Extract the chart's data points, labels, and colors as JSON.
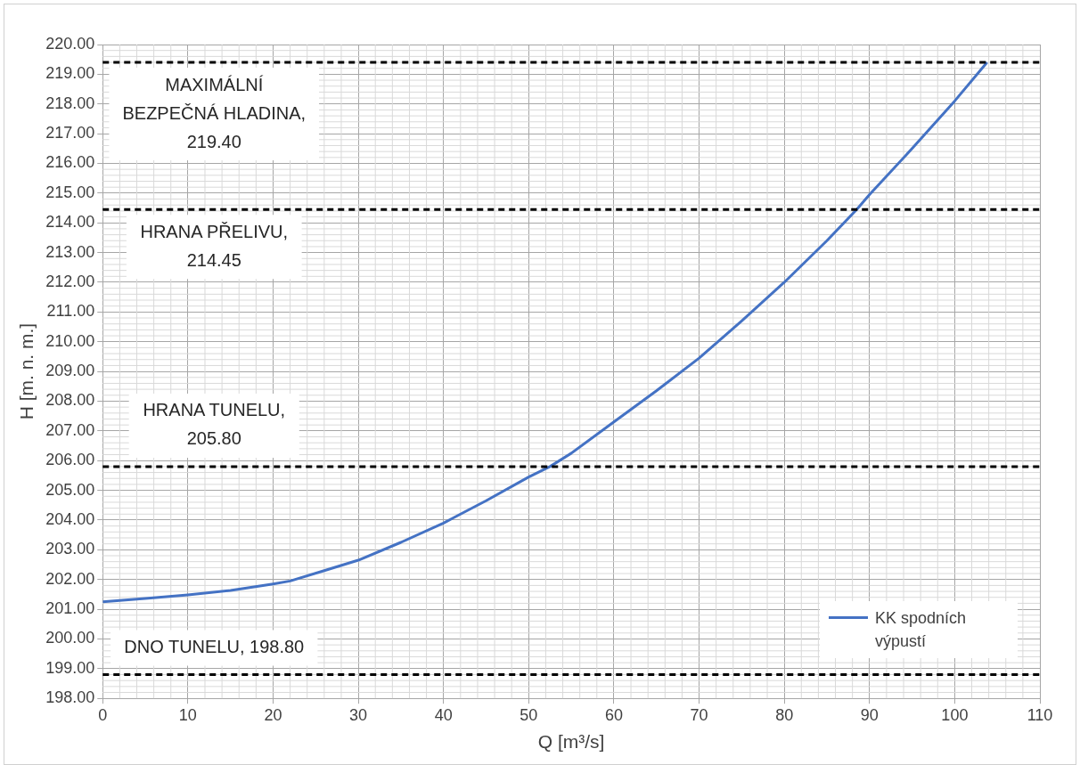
{
  "chart_data": {
    "type": "line",
    "xlabel": "Q [m³/s]",
    "ylabel": "H [m. n. m.]",
    "xlim": [
      0,
      110
    ],
    "xticks": [
      0,
      10,
      20,
      30,
      40,
      50,
      60,
      70,
      80,
      90,
      100,
      110
    ],
    "ylim": [
      198,
      220
    ],
    "yticks": [
      {
        "value": 198,
        "label": "198.00"
      },
      {
        "value": 199,
        "label": "199.00"
      },
      {
        "value": 200,
        "label": "200.00"
      },
      {
        "value": 201,
        "label": "201.00"
      },
      {
        "value": 202,
        "label": "202.00"
      },
      {
        "value": 203,
        "label": "203.00"
      },
      {
        "value": 204,
        "label": "204.00"
      },
      {
        "value": 205,
        "label": "205.00"
      },
      {
        "value": 206,
        "label": "206.00"
      },
      {
        "value": 207,
        "label": "207.00"
      },
      {
        "value": 208,
        "label": "208.00"
      },
      {
        "value": 209,
        "label": "209.00"
      },
      {
        "value": 210,
        "label": "210.00"
      },
      {
        "value": 211,
        "label": "211.00"
      },
      {
        "value": 212,
        "label": "212.00"
      },
      {
        "value": 213,
        "label": "213.00"
      },
      {
        "value": 214,
        "label": "214.00"
      },
      {
        "value": 215,
        "label": "215.00"
      },
      {
        "value": 216,
        "label": "216.00"
      },
      {
        "value": 217,
        "label": "217.00"
      },
      {
        "value": 218,
        "label": "218.00"
      },
      {
        "value": 219,
        "label": "219.00"
      },
      {
        "value": 220,
        "label": "220.00"
      }
    ],
    "grid": true,
    "legend": "bottom right",
    "marker": "none",
    "line_style": "solid",
    "series": [
      {
        "name": "KK spodních výpustí",
        "color": "#4472c4",
        "x": [
          0,
          5,
          10,
          15,
          20,
          22,
          26,
          30,
          35,
          40,
          45,
          50,
          52.5,
          55,
          60,
          65,
          70,
          75,
          80,
          85,
          88.5,
          90,
          95,
          100,
          103.8
        ],
        "values": [
          201.25,
          201.36,
          201.48,
          201.63,
          201.85,
          201.95,
          202.3,
          202.65,
          203.25,
          203.9,
          204.65,
          205.45,
          205.8,
          206.25,
          207.3,
          208.35,
          209.45,
          210.7,
          212.0,
          213.4,
          214.45,
          214.95,
          216.5,
          218.1,
          219.4
        ]
      }
    ],
    "ref_lines": [
      {
        "axis": "y",
        "value": 219.4,
        "label": "MAXIMÁLNÍ BEZPEČNÁ HLADINA, 219.40",
        "color": "#000000",
        "line_style": "dashed"
      },
      {
        "axis": "y",
        "value": 214.45,
        "label": "HRANA PŘELIVU, 214.45",
        "color": "#000000",
        "line_style": "dashed"
      },
      {
        "axis": "y",
        "value": 205.8,
        "label": "HRANA TUNELU, 205.80",
        "color": "#000000",
        "line_style": "dashed"
      },
      {
        "axis": "y",
        "value": 198.8,
        "label": "DNO TUNELU, 198.80",
        "color": "#000000",
        "line_style": "dashed"
      }
    ]
  }
}
